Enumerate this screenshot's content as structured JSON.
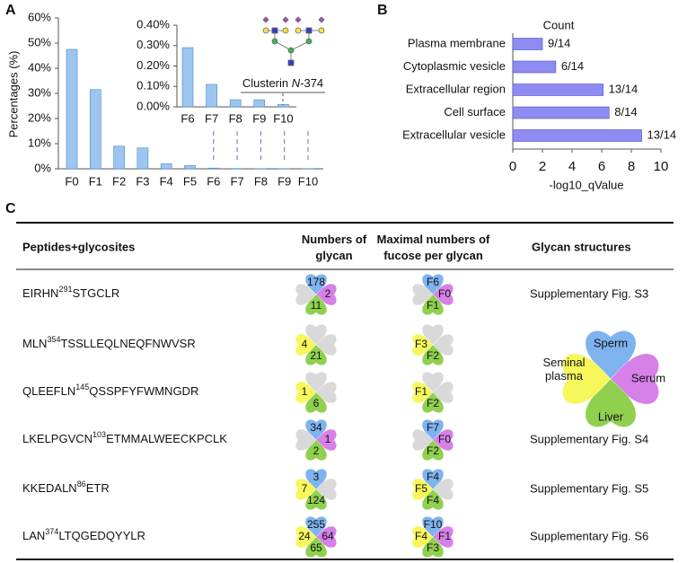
{
  "panels": [
    "A",
    "B",
    "C"
  ],
  "chart_data": [
    {
      "type": "bar",
      "ylabel": "Percentages (%)",
      "color": "#9cc6f0",
      "categories": [
        "F0",
        "F1",
        "F2",
        "F3",
        "F4",
        "F5",
        "F6",
        "F7",
        "F8",
        "F9",
        "F10"
      ],
      "values": [
        47.5,
        31.5,
        9,
        8.3,
        2,
        1.3,
        0.29,
        0.11,
        0.035,
        0.035,
        0.012
      ],
      "ylim": [
        0,
        60
      ],
      "yticks": [
        {
          "value": 0,
          "label": "0%"
        },
        {
          "value": 10,
          "label": "10%"
        },
        {
          "value": 20,
          "label": "20%"
        },
        {
          "value": 30,
          "label": "30%"
        },
        {
          "value": 40,
          "label": "40%"
        },
        {
          "value": 50,
          "label": "50%"
        },
        {
          "value": 60,
          "label": "60%"
        }
      ]
    },
    {
      "type": "bar",
      "color": "#9cc6f0",
      "annotation": {
        "prefix": "Clusterin ",
        "italic": "N",
        "suffix": "-374"
      },
      "categories": [
        "F6",
        "F7",
        "F8",
        "F9",
        "F10"
      ],
      "values": [
        0.29,
        0.11,
        0.035,
        0.035,
        0.012
      ],
      "ylim": [
        0,
        0.4
      ],
      "yticks": [
        {
          "value": 0,
          "label": "0.00%"
        },
        {
          "value": 0.1,
          "label": "0.10%"
        },
        {
          "value": 0.2,
          "label": "0.20%"
        },
        {
          "value": 0.3,
          "label": "0.30%"
        },
        {
          "value": 0.4,
          "label": "0.40%"
        }
      ]
    },
    {
      "type": "hbar",
      "xlabel": "-log10_qValue",
      "count_title": "Count",
      "color": "#8c8cf2",
      "categories": [
        "Plasma membrane",
        "Cytoplasmic vesicle",
        "Extracellular region",
        "Cell surface",
        "Extracellular vesicle"
      ],
      "values": [
        2.0,
        2.9,
        6.1,
        6.5,
        8.7
      ],
      "count_labels": [
        "9/14",
        "6/14",
        "13/14",
        "8/14",
        "13/14"
      ],
      "xlim": [
        0,
        10
      ],
      "xticks": [
        0,
        2,
        4,
        6,
        8,
        10
      ]
    }
  ],
  "table": {
    "headers": [
      "Peptides+glycosites",
      "Numbers of glycan",
      "Maximal numbers of fucose per glycan",
      "Glycan structures"
    ],
    "legend": [
      {
        "name": "Sperm",
        "color": "#7fb3ef"
      },
      {
        "name": "Serum",
        "color": "#d680e8"
      },
      {
        "name": "Liver",
        "color": "#8fd14f"
      },
      {
        "name": "Seminal plasma",
        "color": "#f7f75c"
      }
    ],
    "absent_color": "#d9d9d9",
    "rows": [
      {
        "pre": "EIRHN",
        "site": "291",
        "post": "STGCLR",
        "glycans": [
          178,
          2,
          11,
          null
        ],
        "fucose": [
          "F6",
          "F0",
          "F1",
          null
        ],
        "structure": "Supplementary Fig. S3"
      },
      {
        "pre": "MLN",
        "site": "354",
        "post": "TSSLLEQLNEQFNWVSR",
        "glycans": [
          null,
          null,
          21,
          4
        ],
        "fucose": [
          null,
          null,
          "F2",
          "F3"
        ]
      },
      {
        "pre": "QLEEFLN",
        "site": "145",
        "post": "QSSPFYFWMNGDR",
        "glycans": [
          null,
          null,
          6,
          1
        ],
        "fucose": [
          null,
          null,
          "F2",
          "F1"
        ]
      },
      {
        "pre": "LKELPGVCN",
        "site": "103",
        "post": "ETMMALWEECKPCLK",
        "glycans": [
          34,
          1,
          2,
          null
        ],
        "fucose": [
          "F7",
          "F0",
          "F2",
          null
        ],
        "structure": "Supplementary Fig. S4"
      },
      {
        "pre": "KKEDALN",
        "site": "86",
        "post": "ETR",
        "glycans": [
          3,
          null,
          124,
          7
        ],
        "fucose": [
          "F4",
          null,
          "F4",
          "F5"
        ],
        "structure": "Supplementary Fig. S5"
      },
      {
        "pre": "LAN",
        "site": "374",
        "post": "LTQGEDQYYLR",
        "glycans": [
          255,
          64,
          65,
          24
        ],
        "fucose": [
          "F10",
          "F1",
          "F3",
          "F4"
        ],
        "structure": "Supplementary Fig. S6"
      }
    ]
  }
}
